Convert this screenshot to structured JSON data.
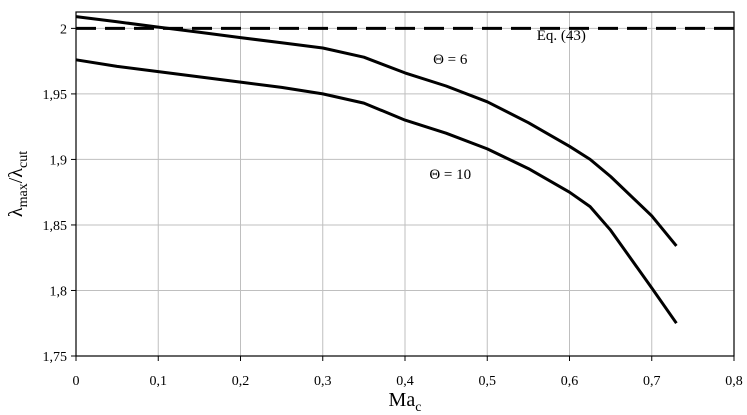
{
  "chart_data": {
    "type": "line",
    "xlabel": {
      "main": "Ma",
      "sub": "c"
    },
    "ylabel": {
      "main1": "λ",
      "sub1": "max",
      "slash": "/",
      "main2": "λ",
      "sub2": "cut"
    },
    "xlim": [
      0,
      0.8
    ],
    "ylim": [
      1.75,
      2.0125
    ],
    "grid": true,
    "x_ticks": [
      0,
      0.1,
      0.2,
      0.3,
      0.4,
      0.5,
      0.6,
      0.7,
      0.8
    ],
    "x_tick_labels": [
      "0",
      "0,1",
      "0,2",
      "0,3",
      "0,4",
      "0,5",
      "0,6",
      "0,7",
      "0,8"
    ],
    "y_ticks": [
      1.75,
      1.8,
      1.85,
      1.9,
      1.95,
      2.0
    ],
    "y_tick_labels": [
      "1,75",
      "1,8",
      "1,85",
      "1,9",
      "1,95",
      "2"
    ],
    "series": [
      {
        "name": "Eq. (43)",
        "style": "dashed",
        "x": [
          0,
          0.8
        ],
        "y": [
          2.0,
          2.0
        ]
      },
      {
        "name": "Θ = 6",
        "style": "solid",
        "x": [
          0,
          0.05,
          0.1,
          0.15,
          0.2,
          0.25,
          0.3,
          0.35,
          0.4,
          0.45,
          0.5,
          0.55,
          0.6,
          0.625,
          0.65,
          0.7,
          0.73
        ],
        "y": [
          2.009,
          2.005,
          2.001,
          1.997,
          1.993,
          1.989,
          1.985,
          1.978,
          1.966,
          1.956,
          1.944,
          1.928,
          1.91,
          1.9,
          1.887,
          1.857,
          1.834
        ]
      },
      {
        "name": "Θ = 10",
        "style": "solid",
        "x": [
          0,
          0.05,
          0.1,
          0.15,
          0.2,
          0.25,
          0.3,
          0.35,
          0.4,
          0.45,
          0.5,
          0.55,
          0.6,
          0.625,
          0.65,
          0.7,
          0.73
        ],
        "y": [
          1.976,
          1.971,
          1.967,
          1.963,
          1.959,
          1.955,
          1.95,
          1.943,
          1.93,
          1.92,
          1.908,
          1.893,
          1.875,
          1.864,
          1.846,
          1.802,
          1.775
        ]
      }
    ],
    "annotations": [
      {
        "text": "Eq. (43)",
        "x": 0.59,
        "y": 1.991
      },
      {
        "text": "Θ = 6",
        "x": 0.455,
        "y": 1.973
      },
      {
        "text": "Θ = 10",
        "x": 0.455,
        "y": 1.885
      }
    ],
    "colors": {
      "line": "#000000",
      "grid": "#bfbfbf",
      "background": "#ffffff"
    }
  }
}
